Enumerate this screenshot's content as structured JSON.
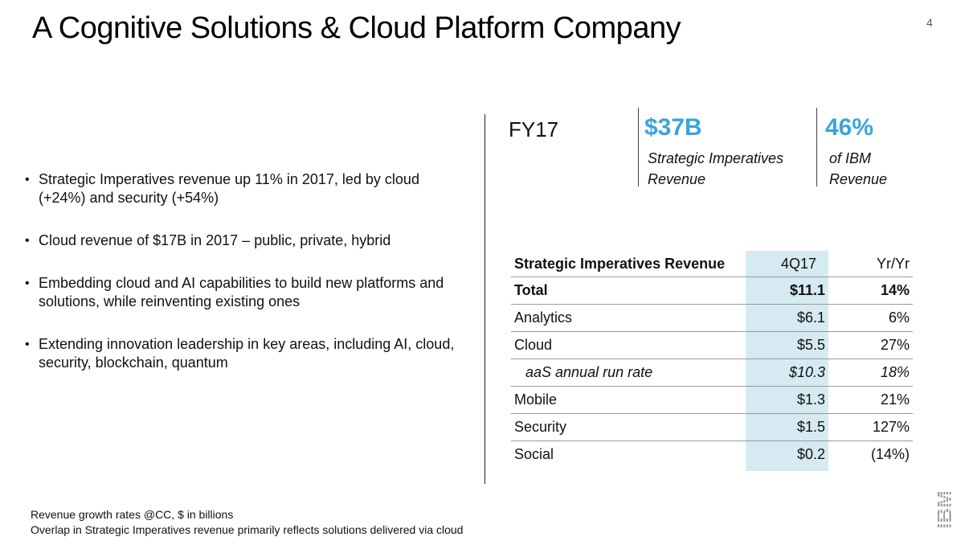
{
  "slide": {
    "title": "A Cognitive Solutions & Cloud Platform Company",
    "page_number": "4"
  },
  "bullets": [
    "Strategic Imperatives revenue up 11% in 2017, led by cloud (+24%) and security (+54%)",
    "Cloud revenue of $17B in 2017 – public, private, hybrid",
    "Embedding cloud and AI capabilities to build new platforms and solutions, while reinventing existing ones",
    "Extending innovation leadership in key areas, including AI, cloud, security, blockchain, quantum"
  ],
  "summary": {
    "period": "FY17",
    "metrics": [
      {
        "value": "$37B",
        "label_line1": "Strategic Imperatives",
        "label_line2": "Revenue"
      },
      {
        "value": "46%",
        "label_line1": "of IBM",
        "label_line2": "Revenue"
      }
    ]
  },
  "table": {
    "headers": [
      "Strategic Imperatives Revenue",
      "4Q17",
      "Yr/Yr"
    ],
    "rows": [
      [
        "Total",
        "$11.1",
        "14%"
      ],
      [
        "Analytics",
        "$6.1",
        "6%"
      ],
      [
        "Cloud",
        "$5.5",
        "27%"
      ],
      [
        "aaS annual run rate",
        "$10.3",
        "18%"
      ],
      [
        "Mobile",
        "$1.3",
        "21%"
      ],
      [
        "Security",
        "$1.5",
        "127%"
      ],
      [
        "Social",
        "$0.2",
        "(14%)"
      ]
    ]
  },
  "footnotes": [
    "Revenue growth rates @CC, $ in billions",
    "Overlap in Strategic Imperatives revenue primarily reflects solutions delivered via cloud"
  ],
  "logo": {
    "text": "IBM"
  },
  "colors": {
    "accent": "#3aa5d8",
    "column_highlight": "#d6eaf2"
  }
}
